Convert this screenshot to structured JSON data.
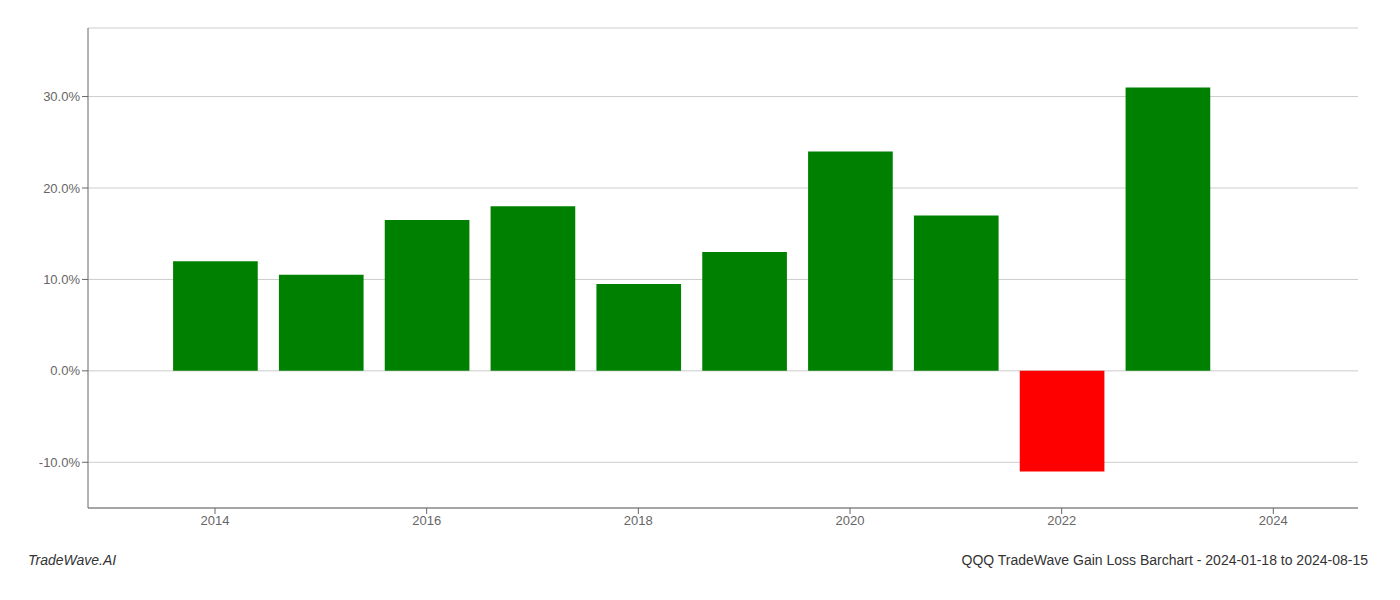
{
  "chart_data": {
    "type": "bar",
    "title": "QQQ TradeWave Gain Loss Barchart - 2024-01-18 to 2024-08-15",
    "annotations": [
      "TradeWave.AI"
    ],
    "x": [
      2014,
      2015,
      2016,
      2017,
      2018,
      2019,
      2020,
      2021,
      2022,
      2023
    ],
    "values": [
      0.12,
      0.105,
      0.165,
      0.18,
      0.095,
      0.13,
      0.24,
      0.17,
      -0.11,
      0.31
    ],
    "colors": [
      "#008000",
      "#008000",
      "#008000",
      "#008000",
      "#008000",
      "#008000",
      "#008000",
      "#008000",
      "#ff0000",
      "#008000"
    ],
    "xlim": [
      2012.8,
      2024.8
    ],
    "xticks": [
      2014,
      2016,
      2018,
      2020,
      2022,
      2024
    ],
    "ylim": [
      -0.15,
      0.375
    ],
    "yticks": [
      {
        "value": -0.1,
        "label": "-10.0%"
      },
      {
        "value": 0.0,
        "label": "0.0%"
      },
      {
        "value": 0.1,
        "label": "10.0%"
      },
      {
        "value": 0.2,
        "label": "20.0%"
      },
      {
        "value": 0.3,
        "label": "30.0%"
      }
    ],
    "grid": true
  }
}
